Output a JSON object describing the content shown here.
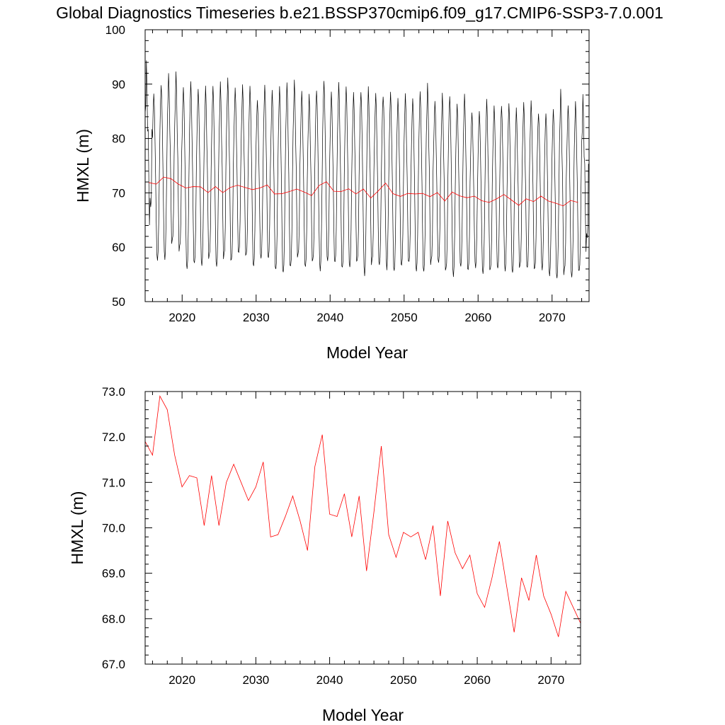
{
  "title": "Global Diagnostics Timeseries b.e21.BSSP370cmip6.f09_g17.CMIP6-SSP3-7.0.001",
  "colors": {
    "monthly": "#000000",
    "annual": "#ff0000",
    "frame": "#000000"
  },
  "chart_data": [
    {
      "type": "line",
      "xlabel": "Model Year",
      "ylabel": "HMXL (m)",
      "xlim": [
        2015,
        2075
      ],
      "ylim": [
        50,
        100
      ],
      "xticks": [
        2020,
        2030,
        2040,
        2050,
        2060,
        2070
      ],
      "yticks": [
        50,
        60,
        70,
        80,
        90,
        100
      ],
      "ytick_labels": [
        "50",
        "60",
        "70",
        "80",
        "90",
        "100"
      ],
      "series": [
        {
          "kind": "monthly",
          "color": "#000000",
          "x_start": 2015.0,
          "step": 0.0833333,
          "annual_max": [
            91.0,
            87.8,
            89.5,
            90.6,
            90.7,
            88.8,
            89.6,
            88.5,
            88.3,
            89.0,
            88.9,
            90.0,
            88.4,
            88.8,
            88.8,
            86.5,
            89.0,
            88.0,
            88.7,
            89.2,
            89.4,
            87.9,
            87.0,
            88.5,
            89.9,
            87.7,
            89.3,
            88.8,
            87.4,
            88.2,
            88.0,
            87.6,
            87.7,
            87.8,
            86.5,
            87.3,
            86.8,
            87.9,
            88.6,
            86.2,
            87.1,
            87.4,
            85.7,
            87.2,
            84.4,
            84.5,
            86.1,
            85.3,
            85.6,
            85.7,
            84.5,
            85.8,
            85.9,
            84.3,
            84.2,
            84.8,
            87.4,
            85.5,
            85.8,
            85.6
          ],
          "annual_min": [
            65.7,
            57.1,
            57.4,
            60.0,
            58.7,
            55.4,
            56.2,
            56.0,
            57.2,
            55.8,
            57.3,
            56.6,
            58.1,
            57.6,
            55.7,
            57.4,
            57.2,
            55.1,
            54.5,
            55.5,
            57.4,
            55.6,
            56.6,
            55.3,
            56.8,
            56.4,
            55.3,
            55.6,
            56.5,
            54.4,
            56.2,
            56.0,
            55.8,
            54.9,
            55.8,
            56.4,
            55.0,
            54.8,
            56.2,
            56.5,
            54.9,
            54.2,
            55.8,
            54.9,
            55.8,
            54.6,
            54.9,
            55.4,
            55.2,
            54.6,
            55.5,
            55.4,
            55.1,
            55.5,
            54.3,
            53.7,
            54.4,
            53.9,
            54.7,
            60.0
          ],
          "annual_means_shown": true
        },
        {
          "kind": "annual",
          "color": "#ff0000",
          "x": [
            2015.5,
            2016.5,
            2017.5,
            2018.5,
            2019.5,
            2020.5,
            2021.5,
            2022.5,
            2023.5,
            2024.5,
            2025.5,
            2026.5,
            2027.5,
            2028.5,
            2029.5,
            2030.5,
            2031.5,
            2032.5,
            2033.5,
            2034.5,
            2035.5,
            2036.5,
            2037.5,
            2038.5,
            2039.5,
            2040.5,
            2041.5,
            2042.5,
            2043.5,
            2044.5,
            2045.5,
            2046.5,
            2047.5,
            2048.5,
            2049.5,
            2050.5,
            2051.5,
            2052.5,
            2053.5,
            2054.5,
            2055.5,
            2056.5,
            2057.5,
            2058.5,
            2059.5,
            2060.5,
            2061.5,
            2062.5,
            2063.5,
            2064.5,
            2065.5,
            2066.5,
            2067.5,
            2068.5,
            2069.5,
            2070.5,
            2071.5,
            2072.5,
            2073.5
          ]
        }
      ]
    },
    {
      "type": "line",
      "xlabel": "Model Year",
      "ylabel": "HMXL (m)",
      "xlim": [
        2015,
        2074
      ],
      "ylim": [
        67.0,
        73.0
      ],
      "xticks": [
        2020,
        2030,
        2040,
        2050,
        2060,
        2070
      ],
      "yticks": [
        67.0,
        68.0,
        69.0,
        70.0,
        71.0,
        72.0,
        73.0
      ],
      "ytick_labels": [
        "67.0",
        "68.0",
        "69.0",
        "70.0",
        "71.0",
        "72.0",
        "73.0"
      ],
      "series": [
        {
          "kind": "annual",
          "color": "#ff0000",
          "x": [
            2015,
            2016,
            2017,
            2018,
            2019,
            2020,
            2021,
            2022,
            2023,
            2024,
            2025,
            2026,
            2027,
            2028,
            2029,
            2030,
            2031,
            2032,
            2033,
            2034,
            2035,
            2036,
            2037,
            2038,
            2039,
            2040,
            2041,
            2042,
            2043,
            2044,
            2045,
            2046,
            2047,
            2048,
            2049,
            2050,
            2051,
            2052,
            2053,
            2054,
            2055,
            2056,
            2057,
            2058,
            2059,
            2060,
            2061,
            2062,
            2063,
            2064,
            2065,
            2066,
            2067,
            2068,
            2069,
            2070,
            2071,
            2072,
            2073,
            2074
          ],
          "values": [
            71.9,
            71.6,
            72.9,
            72.6,
            71.6,
            70.9,
            71.15,
            71.1,
            70.05,
            71.15,
            70.05,
            71.0,
            71.4,
            71.0,
            70.6,
            70.9,
            71.45,
            69.8,
            69.85,
            70.25,
            70.7,
            70.15,
            69.5,
            71.35,
            72.05,
            70.3,
            70.25,
            70.75,
            69.8,
            70.7,
            69.05,
            70.35,
            71.8,
            69.85,
            69.35,
            69.9,
            69.8,
            69.9,
            69.3,
            70.05,
            68.5,
            70.15,
            69.45,
            69.1,
            69.4,
            68.55,
            68.25,
            68.9,
            69.7,
            68.7,
            67.7,
            68.9,
            68.4,
            69.4,
            68.5,
            68.1,
            67.6,
            68.6,
            68.25,
            67.9
          ]
        }
      ]
    }
  ]
}
